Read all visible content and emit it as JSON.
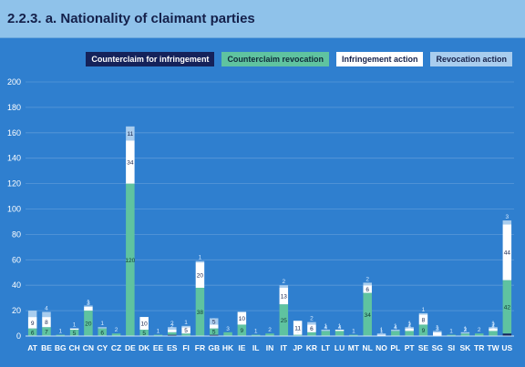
{
  "title": "2.2.3. a. Nationality of claimant parties",
  "legend": [
    {
      "label": "Counterclaim for infringement",
      "bg": "#15225a",
      "fg": "#ffffff"
    },
    {
      "label": "Counterclaim revocation",
      "bg": "#5fc3a0",
      "fg": "#0f2a3a"
    },
    {
      "label": "Infringement action",
      "bg": "#ffffff",
      "fg": "#14204a"
    },
    {
      "label": "Revocation action",
      "bg": "#a9cdee",
      "fg": "#14204a"
    }
  ],
  "colors": {
    "counterclaim_infringement": "#15225a",
    "counterclaim_revocation": "#5fc3a0",
    "infringement_action": "#ffffff",
    "revocation_action": "#a9cdee",
    "grid": "#5a99d8"
  },
  "chart_data": {
    "type": "bar",
    "stacked": true,
    "ylim": [
      0,
      200
    ],
    "yticks": [
      0,
      20,
      40,
      60,
      80,
      100,
      120,
      140,
      160,
      180,
      200
    ],
    "grid": true,
    "legend_position": "top-right",
    "categories": [
      "AT",
      "BE",
      "BG",
      "CH",
      "CN",
      "CY",
      "CZ",
      "DE",
      "DK",
      "EE",
      "ES",
      "FI",
      "FR",
      "GB",
      "HK",
      "IE",
      "IL",
      "IN",
      "IT",
      "JP",
      "KR",
      "LT",
      "LU",
      "MT",
      "NL",
      "NO",
      "PL",
      "PT",
      "SE",
      "SG",
      "SI",
      "SK",
      "TR",
      "TW",
      "US"
    ],
    "series": [
      {
        "name": "Counterclaim for infringement",
        "key": "counterclaim_infringement",
        "values": [
          0,
          0,
          0,
          0,
          0,
          0,
          0,
          0,
          0,
          0,
          1,
          0,
          0,
          1,
          0,
          0,
          0,
          0,
          0,
          0,
          0,
          0,
          0,
          0,
          0,
          0,
          0,
          0,
          0,
          0,
          0,
          0,
          0,
          0,
          2
        ]
      },
      {
        "name": "Counterclaim revocation",
        "key": "counterclaim_revocation",
        "values": [
          6,
          7,
          1,
          5,
          20,
          6,
          2,
          120,
          5,
          1,
          2,
          2,
          38,
          5,
          3,
          9,
          1,
          2,
          25,
          1,
          3,
          4,
          4,
          1,
          34,
          0,
          4,
          4,
          9,
          0,
          1,
          2,
          2,
          4,
          42
        ]
      },
      {
        "name": "Infringement action",
        "key": "infringement_action",
        "values": [
          9,
          8,
          0,
          1,
          3,
          0,
          0,
          34,
          10,
          0,
          2,
          5,
          20,
          3,
          0,
          10,
          0,
          0,
          13,
          11,
          6,
          0,
          1,
          0,
          6,
          1,
          0,
          2,
          8,
          3,
          0,
          0,
          0,
          2,
          44
        ]
      },
      {
        "name": "Revocation action",
        "key": "revocation_action",
        "values": [
          5,
          4,
          0,
          0,
          1,
          1,
          0,
          11,
          0,
          0,
          2,
          1,
          1,
          5,
          0,
          0,
          0,
          0,
          2,
          0,
          2,
          1,
          0,
          0,
          2,
          1,
          1,
          1,
          1,
          1,
          0,
          1,
          0,
          1,
          3
        ]
      }
    ],
    "labels": {
      "AT": [
        "6",
        "9",
        ""
      ],
      "BE": [
        "7",
        "8",
        "4"
      ],
      "BG": [
        "1",
        "",
        ""
      ],
      "CH": [
        "5",
        "1",
        ""
      ],
      "CN": [
        "20",
        "3",
        "1"
      ],
      "CY": [
        "6",
        "",
        "1"
      ],
      "CZ": [
        "2",
        "",
        ""
      ],
      "DE": [
        "120",
        "34",
        "11"
      ],
      "DK": [
        "5",
        "10",
        ""
      ],
      "EE": [
        "1",
        "",
        ""
      ],
      "ES": [
        "",
        "2",
        "2"
      ],
      "FI": [
        "",
        "5",
        "1"
      ],
      "FR": [
        "38",
        "20",
        "1"
      ],
      "GB": [
        "5",
        "3",
        "5"
      ],
      "HK": [
        "3",
        "",
        ""
      ],
      "IE": [
        "9",
        "10",
        ""
      ],
      "IL": [
        "1",
        "",
        ""
      ],
      "IN": [
        "2",
        "",
        ""
      ],
      "IT": [
        "25",
        "13",
        "2"
      ],
      "JP": [
        "1",
        "11",
        ""
      ],
      "KR": [
        "3",
        "6",
        "2"
      ],
      "LT": [
        "4",
        "",
        "1"
      ],
      "LU": [
        "4",
        "1",
        ""
      ],
      "MT": [
        "1",
        "",
        ""
      ],
      "NL": [
        "34",
        "6",
        "2"
      ],
      "NO": [
        "",
        "1",
        "1"
      ],
      "PL": [
        "4",
        "",
        "1"
      ],
      "PT": [
        "4",
        "2",
        "1"
      ],
      "SE": [
        "9",
        "8",
        "1"
      ],
      "SG": [
        "",
        "3",
        "1"
      ],
      "SI": [
        "1",
        "",
        ""
      ],
      "SK": [
        "2",
        "",
        "1"
      ],
      "TR": [
        "2",
        "",
        ""
      ],
      "TW": [
        "4",
        "2",
        "1"
      ],
      "US": [
        "42",
        "44",
        "3"
      ]
    }
  }
}
